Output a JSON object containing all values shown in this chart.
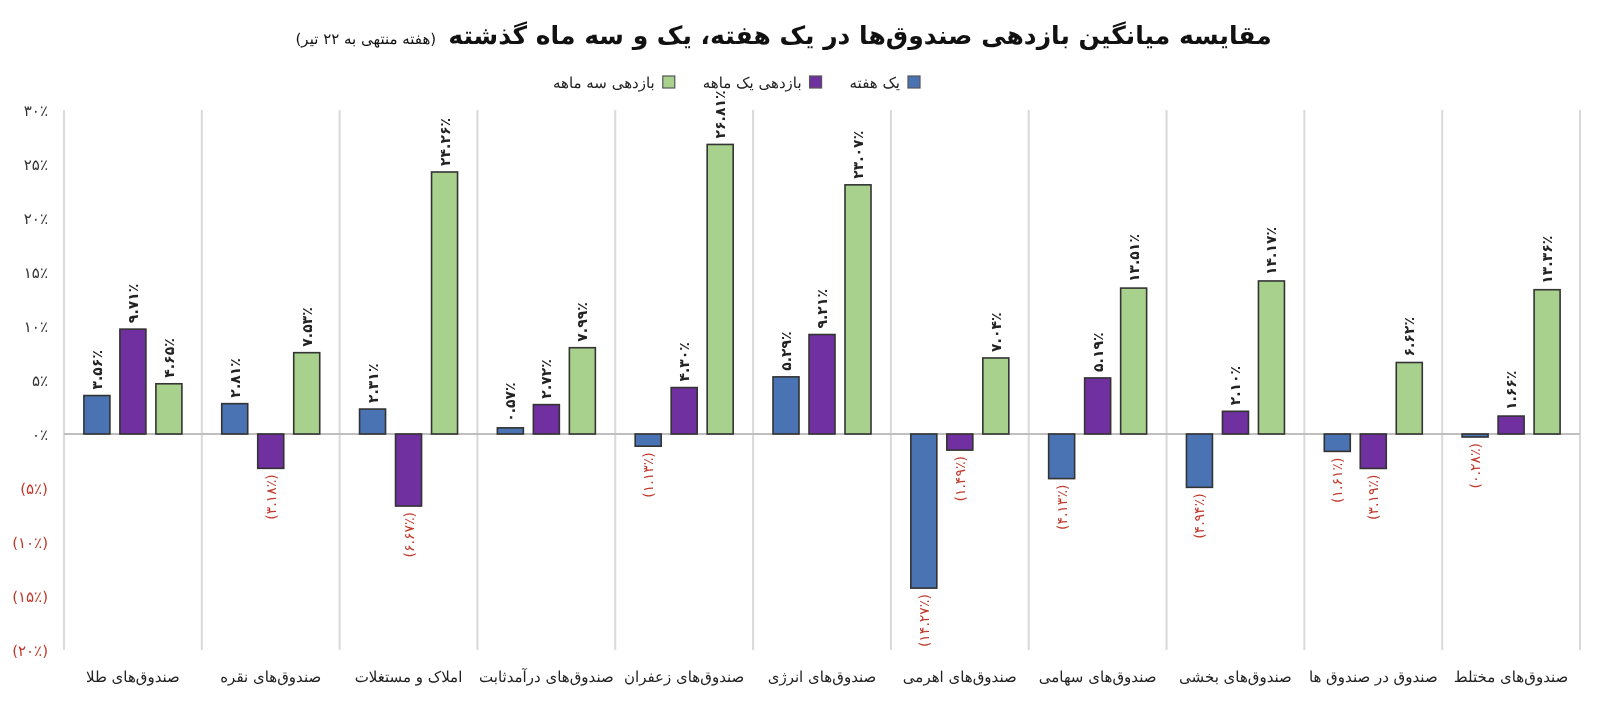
{
  "chart_data": {
    "type": "bar",
    "title": "مقایسه میانگین بازدهی صندوق‌ها در یک هفته، یک و سه ماه گذشته",
    "subtitle": "(هفته منتهی به ۲۲ تیر)",
    "categories": [
      "صندوق‌های طلا",
      "صندوق‌های نقره",
      "املاک و مستغلات",
      "صندوق‌های درآمدثابت",
      "صندوق‌های زعفران",
      "صندوق‌های انرژی",
      "صندوق‌های اهرمی",
      "صندوق‌های سهامی",
      "صندوق‌های بخشی",
      "صندوق در صندوق ها",
      "صندوق‌های مختلط"
    ],
    "series": [
      {
        "name": "یک هفته",
        "color": "#4a73b3",
        "values": [
          3.56,
          2.81,
          2.31,
          0.57,
          -1.13,
          5.29,
          -14.27,
          -4.13,
          -4.94,
          -1.61,
          -0.28
        ],
        "value_labels": [
          "۳.۵۶٪",
          "۲.۸۱٪",
          "۲.۳۱٪",
          "۰.۵۷٪",
          "(۱.۱۳٪)",
          "۵.۲۹٪",
          "(۱۴.۲۷٪)",
          "(۴.۱۳٪)",
          "(۴.۹۴٪)",
          "(۱.۶۱٪)",
          "(۰.۲۸٪)"
        ]
      },
      {
        "name": "بازدهی یک ماهه",
        "color": "#7030a0",
        "values": [
          9.71,
          -3.18,
          -6.67,
          2.72,
          4.3,
          9.21,
          -1.49,
          5.19,
          2.1,
          -3.19,
          1.66
        ],
        "value_labels": [
          "۹.۷۱٪",
          "(۳.۱۸٪)",
          "(۶.۶۷٪)",
          "۲.۷۲٪",
          "۴.۳۰٪",
          "۹.۲۱٪",
          "(۱.۴۹٪)",
          "۵.۱۹٪",
          "۲.۱۰٪",
          "(۳.۱۹٪)",
          "۱.۶۶٪"
        ]
      },
      {
        "name": "بازدهی سه ماهه",
        "color": "#a9d18e",
        "values": [
          4.65,
          7.53,
          24.26,
          7.99,
          26.81,
          23.07,
          7.04,
          13.51,
          14.17,
          6.62,
          13.36
        ],
        "value_labels": [
          "۴.۶۵٪",
          "۷.۵۳٪",
          "۲۴.۲۶٪",
          "۷.۹۹٪",
          "۲۶.۸۱٪",
          "۲۳.۰۷٪",
          "۷.۰۴٪",
          "۱۳.۵۱٪",
          "۱۴.۱۷٪",
          "۶.۶۲٪",
          "۱۳.۳۶٪"
        ]
      }
    ],
    "ylim": [
      -20,
      30
    ],
    "yticks": [
      {
        "value": -20,
        "label": "(۲۰٪)"
      },
      {
        "value": -15,
        "label": "(۱۵٪)"
      },
      {
        "value": -10,
        "label": "(۱۰٪)"
      },
      {
        "value": -5,
        "label": "(۵٪)"
      },
      {
        "value": 0,
        "label": "۰٪"
      },
      {
        "value": 5,
        "label": "۵٪"
      },
      {
        "value": 10,
        "label": "۱۰٪"
      },
      {
        "value": 15,
        "label": "۱۵٪"
      },
      {
        "value": 20,
        "label": "۲۰٪"
      },
      {
        "value": 25,
        "label": "۲۵٪"
      },
      {
        "value": 30,
        "label": "۳۰٪"
      }
    ],
    "grid": "x",
    "legend": "top"
  }
}
